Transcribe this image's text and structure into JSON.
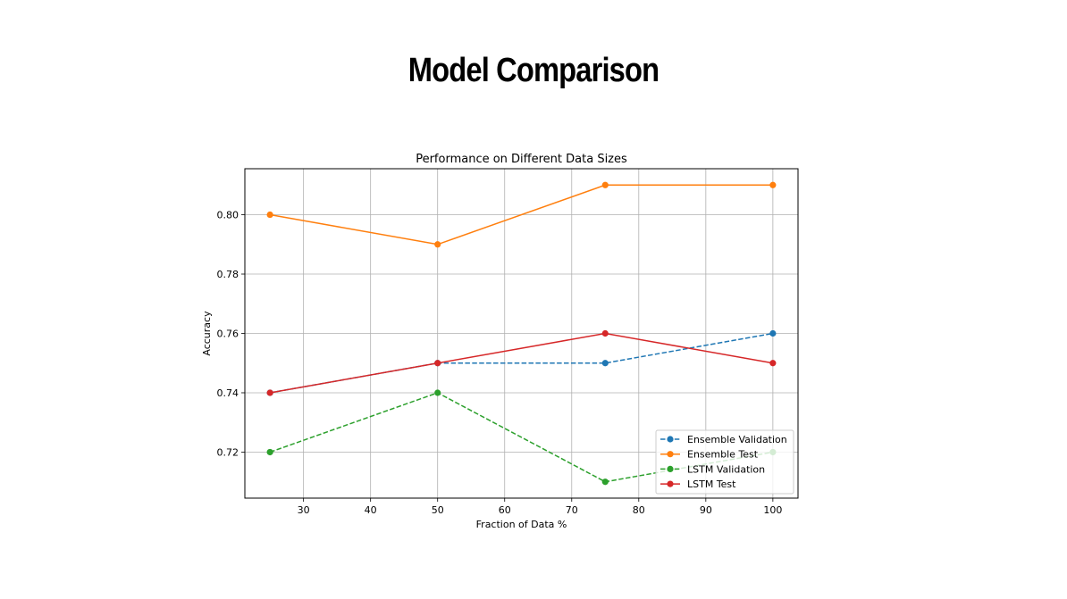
{
  "page": {
    "title": "Model Comparison"
  },
  "chart_data": {
    "type": "line",
    "title": "Performance on Different Data Sizes",
    "xlabel": "Fraction of Data %",
    "ylabel": "Accuracy",
    "xlim": [
      21.25,
      103.75
    ],
    "ylim": [
      0.7045,
      0.8155
    ],
    "xticks": [
      30,
      40,
      50,
      60,
      70,
      80,
      90,
      100
    ],
    "yticks": [
      0.72,
      0.74,
      0.76,
      0.78,
      0.8
    ],
    "grid": true,
    "legend_position": "lower right",
    "x": [
      25,
      50,
      75,
      100
    ],
    "series": [
      {
        "name": "Ensemble Validation",
        "values": [
          0.74,
          0.75,
          0.75,
          0.76
        ],
        "color": "#1f77b4",
        "linestyle": "dashed",
        "marker": "circle"
      },
      {
        "name": "Ensemble Test",
        "values": [
          0.8,
          0.79,
          0.81,
          0.81
        ],
        "color": "#ff7f0e",
        "linestyle": "solid",
        "marker": "circle"
      },
      {
        "name": "LSTM Validation",
        "values": [
          0.72,
          0.74,
          0.71,
          0.72
        ],
        "color": "#2ca02c",
        "linestyle": "dashed",
        "marker": "circle"
      },
      {
        "name": "LSTM Test",
        "values": [
          0.74,
          0.75,
          0.76,
          0.75
        ],
        "color": "#d62728",
        "linestyle": "solid",
        "marker": "circle"
      }
    ]
  }
}
